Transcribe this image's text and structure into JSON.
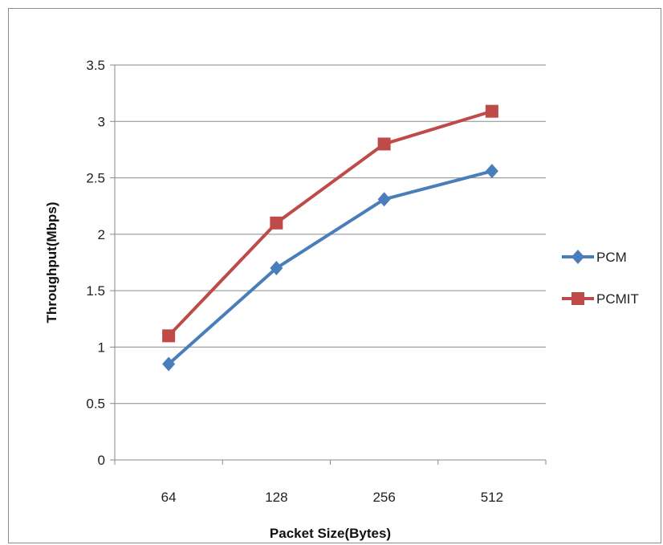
{
  "chart_data": {
    "type": "line",
    "title": "",
    "xlabel": "Packet Size(Bytes)",
    "ylabel": "Throughput(Mbps)",
    "categories": [
      "64",
      "128",
      "256",
      "512"
    ],
    "ylim": [
      0,
      3.5
    ],
    "yticks": [
      "0",
      "0.5",
      "1",
      "1.5",
      "2",
      "2.5",
      "3",
      "3.5"
    ],
    "grid": true,
    "legend": "right",
    "series": [
      {
        "name": "PCM",
        "values": [
          0.85,
          1.7,
          2.31,
          2.56
        ],
        "color": "#4a7ebb",
        "marker": "diamond"
      },
      {
        "name": "PCMIT",
        "values": [
          1.1,
          2.1,
          2.8,
          3.09
        ],
        "color": "#be4b48",
        "marker": "square"
      }
    ]
  }
}
